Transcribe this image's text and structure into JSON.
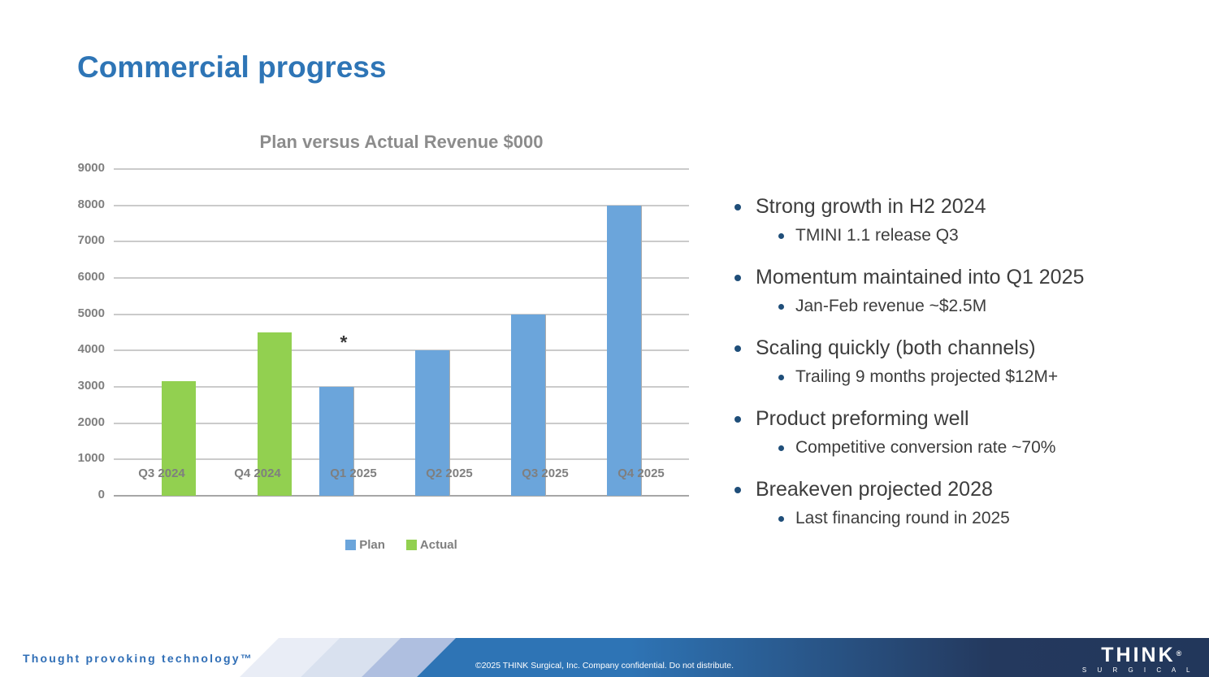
{
  "slide": {
    "title": "Commercial progress"
  },
  "chart_data": {
    "type": "bar",
    "title": "Plan versus Actual Revenue $000",
    "categories": [
      "Q3 2024",
      "Q4 2024",
      "Q1 2025",
      "Q2 2025",
      "Q3 2025",
      "Q4 2025"
    ],
    "series": [
      {
        "name": "Plan",
        "color": "#6BA5DB",
        "values": [
          null,
          null,
          3000,
          4000,
          5000,
          8000
        ]
      },
      {
        "name": "Actual",
        "color": "#92D050",
        "values": [
          3150,
          4500,
          null,
          null,
          null,
          null
        ]
      }
    ],
    "ylim": [
      0,
      9000
    ],
    "ytick_interval": 1000,
    "grid": true,
    "legend_position": "bottom",
    "annotation": {
      "text": "*",
      "category": "Q1 2025",
      "value": 4500
    }
  },
  "bullets": [
    {
      "text": "Strong growth in H2 2024",
      "sub": [
        "TMINI 1.1 release Q3"
      ]
    },
    {
      "text": "Momentum maintained into Q1 2025",
      "sub": [
        "Jan-Feb revenue ~$2.5M"
      ]
    },
    {
      "text": "Scaling quickly (both channels)",
      "sub": [
        "Trailing 9 months projected $12M+"
      ]
    },
    {
      "text": "Product preforming well",
      "sub": [
        "Competitive conversion rate ~70%"
      ]
    },
    {
      "text": "Breakeven projected 2028",
      "sub": [
        "Last financing round in 2025"
      ]
    }
  ],
  "footer": {
    "tagline": "Thought provoking technology™",
    "confidentiality": "©2025 THINK Surgical, Inc. Company confidential. Do not distribute.",
    "logo_text": "THINK",
    "logo_registered": "®",
    "logo_subtext": "S U R G I C A L"
  },
  "colors": {
    "accent_blue": "#2E75B6",
    "plan_bar": "#6BA5DB",
    "actual_bar": "#92D050",
    "footer_blue": "#2E74B5",
    "footer_navy": "#24395E",
    "chart_text_gray": "#7F7F7F",
    "bullet_text": "#3D3D3D",
    "bullet_marker_navy": "#1F4E79"
  }
}
